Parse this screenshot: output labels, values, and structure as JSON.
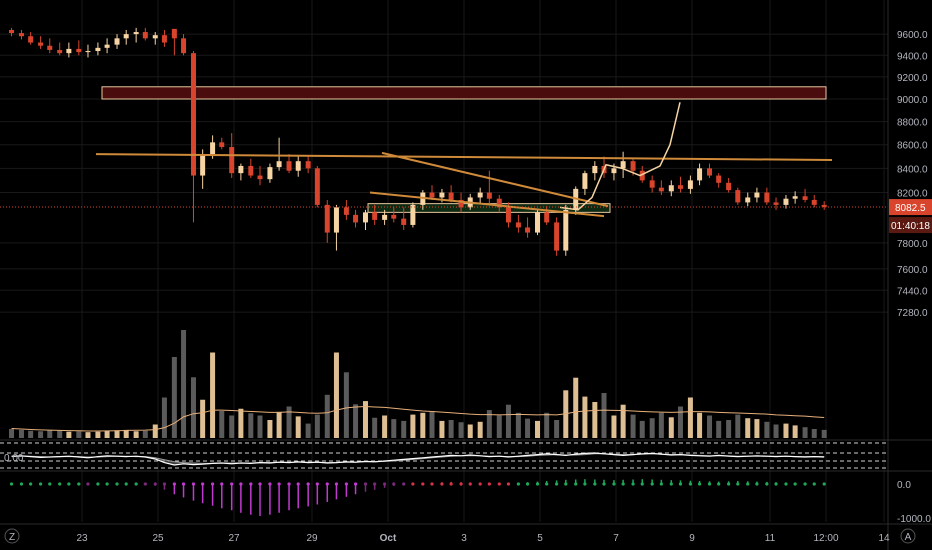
{
  "chart_data": {
    "type": "candlestick",
    "instrument_hint": "price chart",
    "price_axis": {
      "ticks": [
        "9600.0",
        "9400.0",
        "9200.0",
        "9000.0",
        "8800.0",
        "8600.0",
        "8400.0",
        "8200.0",
        "7800.0",
        "7600.0",
        "7440.0",
        "7280.0"
      ],
      "range": [
        7180,
        9640
      ],
      "current_price": "8082.5",
      "countdown": "01:40:18"
    },
    "oscillator_axis": {
      "left_label": "0.00"
    },
    "histogram_axis": {
      "ticks": [
        "0.0",
        "-1000.0"
      ]
    },
    "time_axis": {
      "labels": [
        "23",
        "25",
        "27",
        "29",
        "Oct",
        "3",
        "5",
        "7",
        "9",
        "11",
        "12:00",
        "14"
      ],
      "range_days": [
        22.3,
        34.7
      ]
    },
    "candles": [
      [
        22.32,
        9640,
        9660,
        9580,
        9610
      ],
      [
        22.45,
        9610,
        9640,
        9550,
        9580
      ],
      [
        22.57,
        9580,
        9620,
        9500,
        9520
      ],
      [
        22.7,
        9520,
        9580,
        9460,
        9490
      ],
      [
        22.82,
        9490,
        9560,
        9420,
        9450
      ],
      [
        22.95,
        9450,
        9520,
        9400,
        9420
      ],
      [
        23.07,
        9420,
        9520,
        9380,
        9460
      ],
      [
        23.2,
        9460,
        9540,
        9400,
        9430
      ],
      [
        23.32,
        9430,
        9500,
        9380,
        9440
      ],
      [
        23.45,
        9440,
        9520,
        9400,
        9470
      ],
      [
        23.57,
        9470,
        9560,
        9420,
        9500
      ],
      [
        23.7,
        9500,
        9600,
        9460,
        9560
      ],
      [
        23.82,
        9560,
        9640,
        9500,
        9600
      ],
      [
        23.95,
        9600,
        9660,
        9520,
        9620
      ],
      [
        24.07,
        9620,
        9660,
        9540,
        9560
      ],
      [
        24.2,
        9560,
        9620,
        9500,
        9590
      ],
      [
        24.32,
        9590,
        9640,
        9480,
        9520
      ],
      [
        24.45,
        9650,
        9650,
        9400,
        9560
      ],
      [
        24.57,
        9560,
        9600,
        9400,
        9420
      ],
      [
        24.7,
        9420,
        9440,
        7960,
        8340
      ],
      [
        24.82,
        8340,
        8560,
        8230,
        8520
      ],
      [
        24.95,
        8520,
        8680,
        8480,
        8620
      ],
      [
        25.07,
        8620,
        8660,
        8560,
        8580
      ],
      [
        25.2,
        8580,
        8700,
        8320,
        8360
      ],
      [
        25.32,
        8360,
        8440,
        8300,
        8420
      ],
      [
        25.45,
        8420,
        8480,
        8320,
        8340
      ],
      [
        25.57,
        8340,
        8420,
        8260,
        8310
      ],
      [
        25.7,
        8310,
        8440,
        8280,
        8410
      ],
      [
        25.82,
        8410,
        8660,
        8380,
        8460
      ],
      [
        25.95,
        8460,
        8520,
        8360,
        8380
      ],
      [
        26.07,
        8380,
        8500,
        8330,
        8460
      ],
      [
        26.2,
        8460,
        8500,
        8360,
        8400
      ],
      [
        26.32,
        8400,
        8420,
        8080,
        8100
      ],
      [
        26.45,
        8100,
        8140,
        7800,
        7880
      ],
      [
        26.57,
        7880,
        8100,
        7740,
        8080
      ],
      [
        26.7,
        8080,
        8140,
        7980,
        8020
      ],
      [
        26.82,
        8020,
        8060,
        7920,
        7960
      ],
      [
        26.95,
        7960,
        8060,
        7900,
        8040
      ],
      [
        27.07,
        8040,
        8100,
        7940,
        7980
      ],
      [
        27.2,
        7980,
        8060,
        7940,
        8020
      ],
      [
        27.32,
        8020,
        8080,
        7960,
        7990
      ],
      [
        27.45,
        7990,
        8080,
        7900,
        7940
      ],
      [
        27.57,
        7940,
        8120,
        7920,
        8100
      ],
      [
        27.7,
        8100,
        8220,
        8060,
        8200
      ],
      [
        27.82,
        8200,
        8260,
        8140,
        8160
      ],
      [
        27.95,
        8160,
        8230,
        8120,
        8200
      ],
      [
        28.07,
        8200,
        8260,
        8120,
        8140
      ],
      [
        28.2,
        8140,
        8200,
        8040,
        8080
      ],
      [
        28.32,
        8080,
        8190,
        8060,
        8160
      ],
      [
        28.45,
        8160,
        8240,
        8110,
        8200
      ],
      [
        28.57,
        8200,
        8380,
        8100,
        8150
      ],
      [
        28.7,
        8150,
        8180,
        8040,
        8080
      ],
      [
        28.82,
        8080,
        8120,
        7920,
        7960
      ],
      [
        28.95,
        7960,
        8020,
        7880,
        7920
      ],
      [
        29.07,
        7920,
        8000,
        7840,
        7880
      ],
      [
        29.2,
        7880,
        8060,
        7860,
        8040
      ],
      [
        29.32,
        8040,
        8090,
        7940,
        7960
      ],
      [
        29.45,
        7960,
        8000,
        7700,
        7740
      ],
      [
        29.57,
        7740,
        8100,
        7700,
        8060
      ],
      [
        29.7,
        8060,
        8250,
        8020,
        8230
      ],
      [
        29.82,
        8230,
        8380,
        8180,
        8360
      ],
      [
        29.95,
        8360,
        8460,
        8300,
        8420
      ],
      [
        30.07,
        8420,
        8500,
        8320,
        8360
      ],
      [
        30.2,
        8360,
        8440,
        8300,
        8400
      ],
      [
        30.32,
        8400,
        8540,
        8320,
        8460
      ],
      [
        30.45,
        8460,
        8480,
        8340,
        8380
      ],
      [
        30.57,
        8380,
        8420,
        8280,
        8300
      ],
      [
        30.7,
        8300,
        8340,
        8200,
        8240
      ],
      [
        30.82,
        8240,
        8300,
        8180,
        8210
      ],
      [
        30.95,
        8210,
        8300,
        8170,
        8260
      ],
      [
        31.07,
        8260,
        8330,
        8200,
        8230
      ],
      [
        31.2,
        8230,
        8340,
        8190,
        8300
      ],
      [
        31.32,
        8300,
        8440,
        8260,
        8400
      ],
      [
        31.45,
        8400,
        8440,
        8320,
        8340
      ],
      [
        31.57,
        8340,
        8360,
        8240,
        8280
      ],
      [
        31.7,
        8280,
        8320,
        8200,
        8220
      ],
      [
        31.82,
        8220,
        8240,
        8100,
        8120
      ],
      [
        31.95,
        8120,
        8200,
        8090,
        8160
      ],
      [
        32.07,
        8160,
        8240,
        8120,
        8200
      ],
      [
        32.2,
        8200,
        8240,
        8100,
        8120
      ],
      [
        32.32,
        8120,
        8160,
        8060,
        8100
      ],
      [
        32.45,
        8100,
        8180,
        8070,
        8150
      ],
      [
        32.57,
        8150,
        8210,
        8110,
        8170
      ],
      [
        32.7,
        8170,
        8230,
        8120,
        8140
      ],
      [
        32.82,
        8140,
        8180,
        8080,
        8100
      ],
      [
        32.95,
        8100,
        8130,
        8060,
        8082.5
      ]
    ],
    "volume": [
      200,
      180,
      160,
      150,
      170,
      160,
      140,
      150,
      130,
      140,
      160,
      170,
      180,
      150,
      160,
      300,
      900,
      1800,
      2400,
      1350,
      850,
      1900,
      600,
      500,
      650,
      550,
      500,
      400,
      580,
      700,
      480,
      320,
      520,
      960,
      1900,
      1460,
      750,
      820,
      450,
      500,
      420,
      380,
      520,
      560,
      600,
      380,
      400,
      350,
      300,
      360,
      620,
      500,
      740,
      560,
      430,
      380,
      560,
      400,
      1060,
      1340,
      920,
      800,
      1000,
      500,
      740,
      520,
      380,
      440,
      560,
      460,
      700,
      900,
      560,
      500,
      380,
      400,
      520,
      440,
      420,
      360,
      300,
      320,
      280,
      240,
      200,
      180
    ],
    "volume_ma": [
      210,
      200,
      190,
      180,
      175,
      170,
      165,
      160,
      155,
      155,
      158,
      162,
      168,
      172,
      175,
      185,
      230,
      330,
      470,
      540,
      560,
      620,
      620,
      610,
      600,
      590,
      580,
      570,
      570,
      580,
      570,
      555,
      550,
      560,
      620,
      670,
      690,
      700,
      690,
      680,
      660,
      640,
      620,
      600,
      590,
      575,
      560,
      545,
      530,
      520,
      520,
      515,
      520,
      525,
      520,
      515,
      520,
      515,
      540,
      580,
      600,
      610,
      620,
      615,
      610,
      600,
      590,
      580,
      575,
      570,
      575,
      585,
      585,
      580,
      570,
      560,
      555,
      548,
      540,
      530,
      515,
      505,
      495,
      485,
      470,
      455
    ],
    "oscillator": {
      "line1": [
        0.2,
        0.3,
        0.1,
        -0.1,
        0.0,
        0.1,
        0.2,
        0.0,
        -0.2,
        0.1,
        0.3,
        0.2,
        0.1,
        0.2,
        0.0,
        -0.5,
        -1.4,
        -2.0,
        -1.7,
        -1.9,
        -1.8,
        -1.6,
        -1.5,
        -1.7,
        -1.5,
        -1.6,
        -1.4,
        -1.5,
        -1.3,
        -1.4,
        -1.2,
        -1.4,
        -1.3,
        -1.5,
        -1.4,
        -1.2,
        -1.3,
        -1.1,
        -1.2,
        -1.0,
        -0.8,
        -0.6,
        -0.4,
        -0.2,
        0.0,
        0.2,
        0.4,
        0.3,
        0.5,
        0.3,
        0.1,
        0.2,
        0.0,
        0.2,
        0.4,
        0.6,
        0.8,
        0.6,
        0.4,
        0.7,
        0.9,
        1.0,
        0.8,
        0.6,
        0.4,
        0.6,
        0.8,
        0.9,
        0.7,
        0.5,
        0.6,
        0.4,
        0.3,
        0.2,
        0.4,
        0.2,
        0.1,
        0.2,
        0.3,
        0.2,
        0.1,
        0.2,
        0.1,
        0.0,
        0.1,
        0.0
      ],
      "line2": [
        0.1,
        0.2,
        0.2,
        0.1,
        0.0,
        0.1,
        0.1,
        0.1,
        0.0,
        0.0,
        0.1,
        0.2,
        0.2,
        0.1,
        0.1,
        -0.2,
        -0.7,
        -1.2,
        -1.4,
        -1.5,
        -1.6,
        -1.6,
        -1.5,
        -1.5,
        -1.5,
        -1.5,
        -1.4,
        -1.4,
        -1.3,
        -1.3,
        -1.3,
        -1.3,
        -1.3,
        -1.4,
        -1.4,
        -1.3,
        -1.3,
        -1.2,
        -1.2,
        -1.1,
        -1.0,
        -0.8,
        -0.6,
        -0.4,
        -0.2,
        0.0,
        0.2,
        0.3,
        0.3,
        0.3,
        0.2,
        0.2,
        0.1,
        0.1,
        0.2,
        0.4,
        0.5,
        0.6,
        0.5,
        0.5,
        0.6,
        0.8,
        0.8,
        0.7,
        0.6,
        0.6,
        0.7,
        0.8,
        0.7,
        0.6,
        0.6,
        0.5,
        0.4,
        0.3,
        0.3,
        0.3,
        0.2,
        0.2,
        0.2,
        0.2,
        0.2,
        0.2,
        0.1,
        0.1,
        0.1,
        0.1
      ]
    },
    "histogram": [
      40,
      30,
      20,
      10,
      20,
      30,
      20,
      10,
      -10,
      10,
      20,
      10,
      20,
      10,
      -10,
      -60,
      -180,
      -320,
      -420,
      -520,
      -600,
      -680,
      -760,
      -820,
      -900,
      -960,
      -1000,
      -960,
      -900,
      -820,
      -760,
      -700,
      -640,
      -560,
      -480,
      -400,
      -320,
      -240,
      -180,
      -120,
      -60,
      -20,
      10,
      30,
      50,
      60,
      70,
      60,
      50,
      40,
      30,
      20,
      30,
      40,
      60,
      80,
      100,
      120,
      140,
      150,
      160,
      150,
      140,
      130,
      140,
      150,
      160,
      150,
      140,
      130,
      120,
      110,
      100,
      90,
      80,
      90,
      100,
      90,
      80,
      70,
      60,
      50,
      40,
      30,
      20,
      10
    ],
    "annotations": [
      {
        "type": "zone",
        "style": "resistance",
        "price_range": [
          9000,
          9110
        ],
        "time_range": [
          22.3,
          31.85
        ]
      },
      {
        "type": "zone",
        "style": "support",
        "price_range": [
          8040,
          8110
        ],
        "time_range": [
          29.72,
          34.45
        ]
      },
      {
        "type": "trendline",
        "points": [
          [
            22.5,
            8520
          ],
          [
            33.3,
            8470
          ]
        ]
      },
      {
        "type": "trendline",
        "points": [
          [
            30.0,
            8530
          ],
          [
            34.4,
            8090
          ]
        ]
      },
      {
        "type": "trendline",
        "points": [
          [
            29.75,
            8200
          ],
          [
            34.38,
            8010
          ]
        ]
      },
      {
        "type": "projection",
        "points": [
          [
            33.0,
            8080
          ],
          [
            33.3,
            8060
          ],
          [
            33.5,
            8160
          ],
          [
            33.7,
            8430
          ],
          [
            33.9,
            8400
          ],
          [
            34.2,
            8340
          ],
          [
            34.45,
            8420
          ],
          [
            34.6,
            8600
          ],
          [
            34.75,
            8970
          ]
        ]
      }
    ]
  },
  "colors": {
    "background": "#000000",
    "up": "#f6d4a3",
    "down": "#d8452c",
    "grid": "#191919",
    "resistance_zone": "#4a0c0c",
    "support_zone": "#0e2a12",
    "trendline": "#cf8a3a",
    "projection": "#f6d4a3",
    "price_tag": "#d8452c",
    "volume_bar": "#7a7a7a",
    "osc_line1": "#ffffff",
    "osc_line2": "#9a9a9a",
    "hist_up": "#1fa85a",
    "hist_down_light": "#7a2a7a",
    "hist_down_strong": "#c03ad0",
    "hist_red": "#d8324a"
  }
}
